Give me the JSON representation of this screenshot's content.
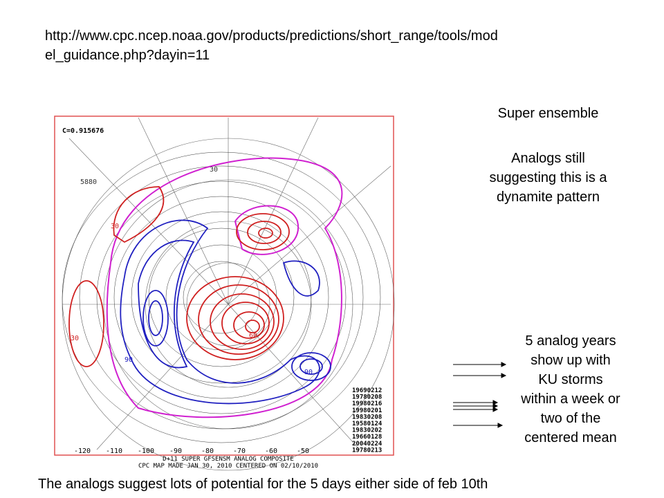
{
  "slide": {
    "url_lines": [
      "http://www.cpc.ncep.noaa.gov/products/predictions/short_range/tools/mod",
      "el_guidance.php?dayin=11"
    ],
    "map": {
      "correlation": "C=0.915676",
      "contour_labels": [
        "5880",
        "30",
        "30",
        "90",
        "90",
        "30",
        "60"
      ],
      "analog_dates": [
        "19690212",
        "19780208",
        "19980216",
        "19980201",
        "19830208",
        "19580124",
        "19830202",
        "19660128",
        "20040224",
        "19780213"
      ],
      "longitude_labels": [
        "-120",
        "-110",
        "-100",
        "-90",
        "-80",
        "-70",
        "-60",
        "-50"
      ],
      "footer_lines": [
        "D+11 SUPER GFSENSM ANALOG COMPOSITE",
        "CPC MAP MADE JAN 30, 2010 CENTERED ON 02/10/2010"
      ]
    },
    "heading": "Super ensemble",
    "analogs_note": [
      "Analogs still",
      "suggesting this is a",
      "dynamite pattern"
    ],
    "years_note": [
      "5 analog years",
      "show up with",
      "KU storms",
      "within a week or",
      "two of the",
      "centered mean"
    ],
    "caption": "The analogs suggest lots of potential for the 5 days either side of feb 10th"
  }
}
